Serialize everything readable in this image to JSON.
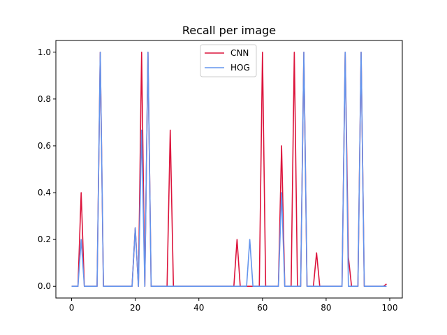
{
  "chart_data": {
    "type": "line",
    "title": "Recall per image",
    "xlabel": "",
    "ylabel": "",
    "xlim": [
      -4.95,
      103.95
    ],
    "ylim": [
      -0.05,
      1.05
    ],
    "xticks": [
      0,
      20,
      40,
      60,
      80,
      100
    ],
    "yticks": [
      0.0,
      0.2,
      0.4,
      0.6,
      0.8,
      1.0
    ],
    "xtick_labels": [
      "0",
      "20",
      "40",
      "60",
      "80",
      "100"
    ],
    "ytick_labels": [
      "0.0",
      "0.2",
      "0.4",
      "0.6",
      "0.8",
      "1.0"
    ],
    "grid": false,
    "legend": "upper center",
    "x": [
      0,
      1,
      2,
      3,
      4,
      5,
      6,
      7,
      8,
      9,
      10,
      11,
      12,
      13,
      14,
      15,
      16,
      17,
      18,
      19,
      20,
      21,
      22,
      23,
      24,
      25,
      26,
      27,
      28,
      29,
      30,
      31,
      32,
      33,
      34,
      35,
      36,
      37,
      38,
      39,
      40,
      41,
      42,
      43,
      44,
      45,
      46,
      47,
      48,
      49,
      50,
      51,
      52,
      53,
      54,
      55,
      56,
      57,
      58,
      59,
      60,
      61,
      62,
      63,
      64,
      65,
      66,
      67,
      68,
      69,
      70,
      71,
      72,
      73,
      74,
      75,
      76,
      77,
      78,
      79,
      80,
      81,
      82,
      83,
      84,
      85,
      86,
      87,
      88,
      89,
      90,
      91,
      92,
      93,
      94,
      95,
      96,
      97,
      98,
      99
    ],
    "series": [
      {
        "name": "CNN",
        "color": "#dc143c",
        "values": [
          0,
          0,
          0,
          0.4,
          0,
          0,
          0,
          0,
          0,
          1,
          0,
          0,
          0,
          0,
          0,
          0,
          0,
          0,
          0,
          0,
          0.25,
          0,
          1,
          0,
          1,
          0,
          0,
          0,
          0,
          0,
          0,
          0.667,
          0,
          0,
          0,
          0,
          0,
          0,
          0,
          0,
          0,
          0,
          0,
          0,
          0,
          0,
          0,
          0,
          0,
          0,
          0,
          0,
          0.2,
          0,
          0,
          0,
          0,
          0,
          0,
          0,
          1,
          0,
          0,
          0,
          0,
          0,
          0.6,
          0,
          0,
          0,
          1,
          0,
          0,
          1,
          0,
          0,
          0,
          0.143,
          0,
          0,
          0,
          0,
          0,
          0,
          0,
          0,
          1,
          0.125,
          0,
          0,
          0,
          1,
          0,
          0,
          0,
          0,
          0,
          0,
          0,
          0.01
        ]
      },
      {
        "name": "HOG",
        "color": "#6495ed",
        "values": [
          0,
          0,
          0,
          0.2,
          0,
          0,
          0,
          0,
          0,
          1,
          0,
          0,
          0,
          0,
          0,
          0,
          0,
          0,
          0,
          0,
          0.25,
          0,
          0.667,
          0,
          1,
          0,
          0,
          0,
          0,
          0,
          0,
          0,
          0,
          0,
          0,
          0,
          0,
          0,
          0,
          0,
          0,
          0,
          0,
          0,
          0,
          0,
          0,
          0,
          0,
          0,
          0,
          0,
          0,
          0,
          0,
          0,
          0.2,
          0,
          0,
          0,
          0,
          0,
          0,
          0,
          0,
          0,
          0.4,
          0,
          0,
          0,
          0,
          0,
          0,
          1,
          0,
          0,
          0,
          0,
          0,
          0,
          0,
          0,
          0,
          0,
          0,
          0,
          1,
          0,
          0,
          0,
          0,
          1,
          0,
          0,
          0,
          0,
          0,
          0,
          0,
          0
        ]
      }
    ]
  }
}
